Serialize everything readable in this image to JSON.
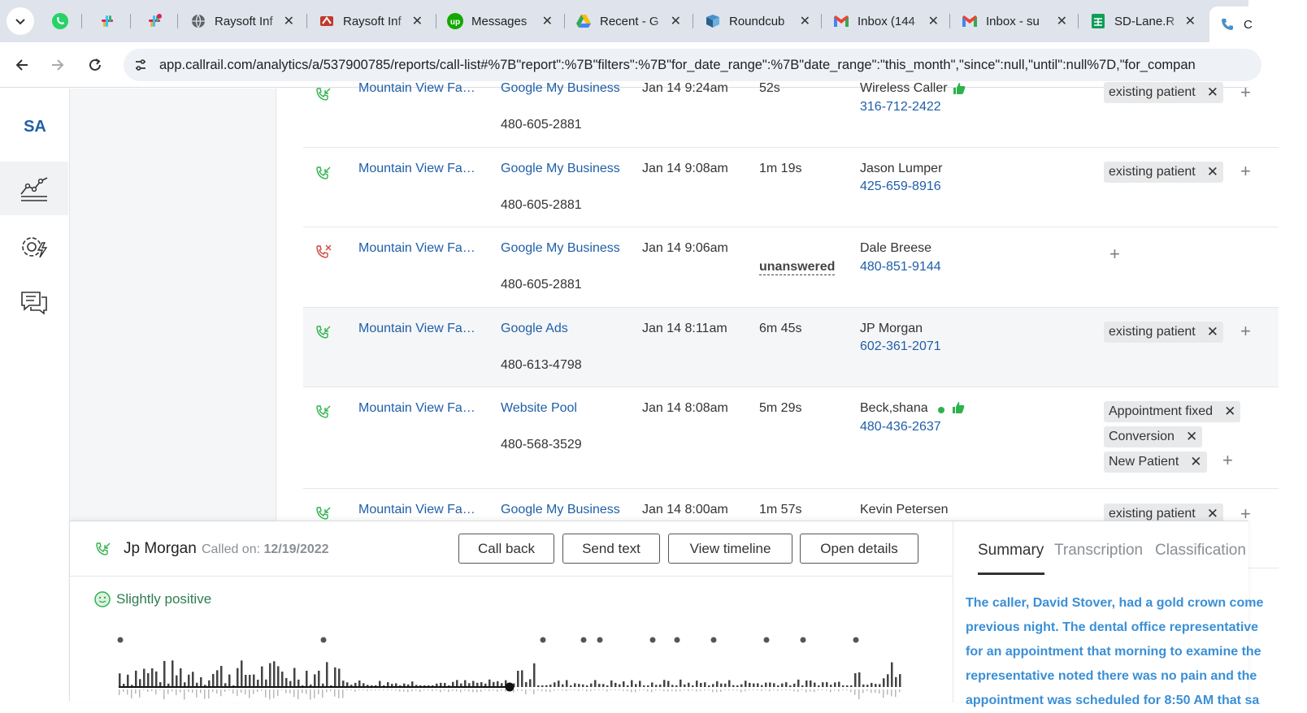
{
  "browser": {
    "tabs": [
      {
        "label": "Raysoft Inf",
        "icon": "globe-icon"
      },
      {
        "label": "Raysoft Inf",
        "icon": "raysoft-icon"
      },
      {
        "label": "Messages",
        "icon": "upwork-icon"
      },
      {
        "label": "Recent - G",
        "icon": "drive-icon"
      },
      {
        "label": "Roundcub",
        "icon": "roundcube-icon"
      },
      {
        "label": "Inbox (144",
        "icon": "gmail-icon"
      },
      {
        "label": "Inbox - su",
        "icon": "gmail-icon"
      },
      {
        "label": "SD-Lane.R",
        "icon": "sheets-icon"
      },
      {
        "label": "C",
        "icon": "phone-icon"
      }
    ],
    "url": "app.callrail.com/analytics/a/537900785/reports/call-list#%7B\"report\":%7B\"filters\":%7B\"for_date_range\":%7B\"date_range\":\"this_month\",\"since\":null,\"until\":null%7D,\"for_compan"
  },
  "app": {
    "account_initials": "SA",
    "nav": [
      {
        "name": "analytics",
        "icon": "analytics-chart-icon",
        "active": true
      },
      {
        "name": "settings",
        "icon": "gear-bolt-icon",
        "active": false
      },
      {
        "name": "messages",
        "icon": "chat-bubbles-icon",
        "active": false
      }
    ]
  },
  "calls": [
    {
      "type": "answered",
      "company": "Mountain View Fa…",
      "source": "Google My Business",
      "tracking": "480-605-2881",
      "date": "Jan 14 9:24am",
      "duration": "52s",
      "caller": "Wireless Caller",
      "phone": "316-712-2422",
      "thumb": true,
      "tags": [
        "existing patient"
      ]
    },
    {
      "type": "answered",
      "company": "Mountain View Fa…",
      "source": "Google My Business",
      "tracking": "480-605-2881",
      "date": "Jan 14 9:08am",
      "duration": "1m 19s",
      "caller": "Jason Lumper",
      "phone": "425-659-8916",
      "tags": [
        "existing patient"
      ]
    },
    {
      "type": "missed",
      "company": "Mountain View Fa…",
      "source": "Google My Business",
      "tracking": "480-605-2881",
      "date": "Jan 14 9:06am",
      "duration": "unanswered",
      "caller": "Dale Breese",
      "phone": "480-851-9144",
      "tags": []
    },
    {
      "type": "answered",
      "company": "Mountain View Fa…",
      "source": "Google Ads",
      "tracking": "480-613-4798",
      "date": "Jan 14 8:11am",
      "duration": "6m 45s",
      "caller": "JP Morgan",
      "phone": "602-361-2071",
      "tags": [
        "existing patient"
      ]
    },
    {
      "type": "answered",
      "company": "Mountain View Fa…",
      "source": "Website Pool",
      "tracking": "480-568-3529",
      "date": "Jan 14 8:08am",
      "duration": "5m 29s",
      "caller": "Beck,shana",
      "phone": "480-436-2637",
      "thumb": true,
      "tags": [
        "Appointment fixed",
        "Conversion",
        "New Patient"
      ]
    },
    {
      "type": "answered",
      "company": "Mountain View Fa…",
      "source": "Google My Business",
      "tracking": "",
      "date": "Jan 14 8:00am",
      "duration": "1m 57s",
      "caller": "Kevin Petersen",
      "phone": "",
      "tags": [
        "existing patient"
      ]
    }
  ],
  "tag_remove_glyph": "✕",
  "tag_add_glyph": "+",
  "player": {
    "caller_name": "Jp Morgan",
    "called_on_label": "Called on:",
    "called_on_date": "12/19/2022",
    "buttons": {
      "call_back": "Call back",
      "send_text": "Send text",
      "view_timeline": "View timeline",
      "open_details": "Open details"
    },
    "sentiment": "Slightly positive",
    "playback_progress": 0.5,
    "tabs": [
      "Summary",
      "Transcription",
      "Classification"
    ],
    "active_tab": "Summary",
    "summary_lines": [
      "The caller, David Stover, had a gold crown come",
      "previous night. The dental office representative",
      "for an appointment that morning to examine the",
      "representative noted there was no pain and the",
      "appointment was scheduled for 8:50 AM that sa"
    ]
  },
  "colors": {
    "link": "#1f5fa8",
    "missed": "#d0453c",
    "answered": "#2eb34b",
    "sentiment": "#2e7d4f",
    "summary_text": "#3a8fd6"
  }
}
